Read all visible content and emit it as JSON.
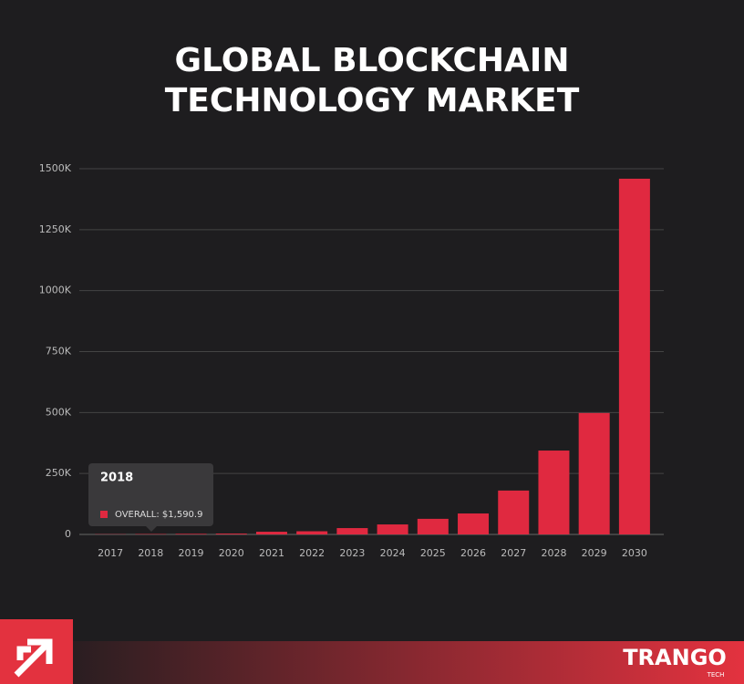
{
  "chart_data": {
    "type": "bar",
    "title_lines": [
      "GLOBAL BLOCKCHAIN",
      "TECHNOLOGY MARKET"
    ],
    "categories": [
      "2017",
      "2018",
      "2019",
      "2020",
      "2021",
      "2022",
      "2023",
      "2024",
      "2025",
      "2026",
      "2027",
      "2028",
      "2029",
      "2030"
    ],
    "series": [
      {
        "name": "OVERALL",
        "color": "#e02940",
        "values": [
          0.9,
          1.6,
          2.5,
          3.5,
          11,
          13,
          26,
          41,
          64,
          86,
          180,
          344,
          498,
          1459
        ]
      }
    ],
    "ylim": [
      0,
      1500
    ],
    "yticks": [
      0,
      {
        "value": 250,
        "label": "250K"
      },
      {
        "value": 500,
        "label": "500K"
      },
      {
        "value": 750,
        "label": "750K"
      },
      {
        "value": 1000,
        "label": "1000K"
      },
      {
        "value": 1250,
        "label": "1250K"
      },
      {
        "value": 1500,
        "label": "1500K"
      }
    ],
    "grid": true,
    "tooltip": {
      "category": "2018",
      "text": "OVERALL: $1,590.9"
    }
  },
  "brand": {
    "name": "TRANGO",
    "sub": "TECH"
  }
}
